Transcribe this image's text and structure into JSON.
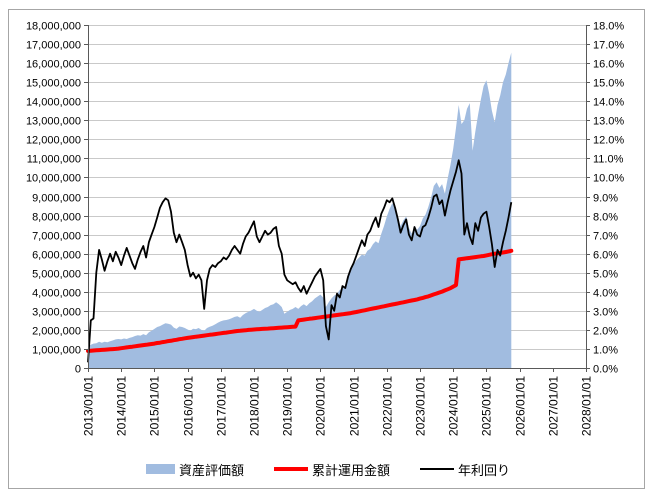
{
  "chart": {
    "background": "#FFFFFF",
    "border_color": "#A6A6A6",
    "grid_color": "#C9C9C9",
    "axis_color": "#595959",
    "text_color": "#000000",
    "left_axis": {
      "min": 0,
      "max": 18000000,
      "step": 1000000,
      "tick_labels": [
        "0",
        "1,000,000",
        "2,000,000",
        "3,000,000",
        "4,000,000",
        "5,000,000",
        "6,000,000",
        "7,000,000",
        "8,000,000",
        "9,000,000",
        "10,000,000",
        "11,000,000",
        "12,000,000",
        "13,000,000",
        "14,000,000",
        "15,000,000",
        "16,000,000",
        "17,000,000",
        "18,000,000"
      ]
    },
    "right_axis": {
      "min_percent": 0,
      "max_percent": 18,
      "step_percent": 1,
      "tick_labels": [
        "0.0%",
        "1.0%",
        "2.0%",
        "3.0%",
        "4.0%",
        "5.0%",
        "6.0%",
        "7.0%",
        "8.0%",
        "9.0%",
        "10.0%",
        "11.0%",
        "12.0%",
        "13.0%",
        "14.0%",
        "15.0%",
        "16.0%",
        "17.0%",
        "18.0%"
      ]
    },
    "x_axis": {
      "tick_labels": [
        "2013/01/01",
        "2014/01/01",
        "2015/01/01",
        "2016/01/01",
        "2017/01/01",
        "2018/01/01",
        "2019/01/01",
        "2020/01/01",
        "2021/01/01",
        "2022/01/01",
        "2023/01/01",
        "2024/01/01",
        "2025/01/01",
        "2026/01/01",
        "2027/01/01",
        "2028/01/01"
      ]
    },
    "legend": {
      "items": [
        {
          "label": "資産評価額",
          "swatch": "area",
          "color": "#A1BCE0"
        },
        {
          "label": "累計運用金額",
          "swatch": "line",
          "color": "#FF0000"
        },
        {
          "label": "年利回り",
          "swatch": "line",
          "color": "#000000"
        }
      ]
    }
  },
  "chart_data": {
    "type": "combo",
    "x_frequency": "monthly",
    "x_start": "2013-01",
    "x_end": "2025-10",
    "x_axis_range": [
      "2013/01/01",
      "2028/01/01"
    ],
    "left_axis_range": [
      0,
      18000000
    ],
    "right_axis_range_percent": [
      0,
      18
    ],
    "grid": "horizontal-only",
    "legend_position": "bottom",
    "series": [
      {
        "name": "資産評価額",
        "type": "area",
        "axis": "left",
        "color": "#A1BCE0",
        "values": [
          1150000,
          1220000,
          1280000,
          1300000,
          1380000,
          1320000,
          1380000,
          1350000,
          1400000,
          1450000,
          1500000,
          1520000,
          1500000,
          1550000,
          1520000,
          1580000,
          1620000,
          1680000,
          1720000,
          1700000,
          1780000,
          1720000,
          1880000,
          1950000,
          2050000,
          2150000,
          2200000,
          2280000,
          2350000,
          2320000,
          2280000,
          2120000,
          2050000,
          2180000,
          2150000,
          2100000,
          2020000,
          1960000,
          2060000,
          2040000,
          2100000,
          2000000,
          1950000,
          2100000,
          2160000,
          2220000,
          2300000,
          2380000,
          2450000,
          2500000,
          2520000,
          2560000,
          2620000,
          2680000,
          2720000,
          2640000,
          2780000,
          2880000,
          2950000,
          3020000,
          3100000,
          3000000,
          2950000,
          3050000,
          3150000,
          3200000,
          3300000,
          3350000,
          3450000,
          3350000,
          3200000,
          2850000,
          2950000,
          3050000,
          3100000,
          3200000,
          3100000,
          3250000,
          3350000,
          3250000,
          3400000,
          3500000,
          3650000,
          3750000,
          3850000,
          3700000,
          3200000,
          3450000,
          3650000,
          3800000,
          3900000,
          4100000,
          4150000,
          4300000,
          4750000,
          5150000,
          5400000,
          5650000,
          5800000,
          5950000,
          5900000,
          6150000,
          6250000,
          6500000,
          6650000,
          6550000,
          7050000,
          7450000,
          7950000,
          8350000,
          8650000,
          8450000,
          7950000,
          7450000,
          7750000,
          7950000,
          7350000,
          7050000,
          7450000,
          7250000,
          7450000,
          7850000,
          8050000,
          8450000,
          8950000,
          9550000,
          9750000,
          9450000,
          9650000,
          9150000,
          9950000,
          10650000,
          11500000,
          12600000,
          13800000,
          12800000,
          13000000,
          13600000,
          13900000,
          11400000,
          12400000,
          13300000,
          14100000,
          14800000,
          15100000,
          14400000,
          13500000,
          12900000,
          13800000,
          14300000,
          15000000,
          15400000,
          16000000,
          16550000
        ]
      },
      {
        "name": "累計運用金額",
        "type": "line",
        "axis": "left",
        "color": "#FF0000",
        "stroke_width": 4,
        "values": [
          900000,
          910000,
          920000,
          930000,
          940000,
          950000,
          960000,
          970000,
          980000,
          990000,
          1000000,
          1020000,
          1040000,
          1060000,
          1080000,
          1100000,
          1120000,
          1140000,
          1160000,
          1180000,
          1200000,
          1220000,
          1240000,
          1260000,
          1280000,
          1310000,
          1330000,
          1360000,
          1380000,
          1410000,
          1430000,
          1460000,
          1480000,
          1510000,
          1530000,
          1560000,
          1580000,
          1600000,
          1620000,
          1640000,
          1660000,
          1680000,
          1700000,
          1720000,
          1740000,
          1760000,
          1780000,
          1800000,
          1820000,
          1840000,
          1860000,
          1880000,
          1900000,
          1920000,
          1940000,
          1950000,
          1970000,
          1980000,
          2000000,
          2010000,
          2020000,
          2030000,
          2040000,
          2050000,
          2060000,
          2070000,
          2080000,
          2090000,
          2100000,
          2110000,
          2120000,
          2130000,
          2140000,
          2150000,
          2160000,
          2170000,
          2500000,
          2520000,
          2540000,
          2560000,
          2580000,
          2600000,
          2620000,
          2640000,
          2660000,
          2680000,
          2700000,
          2720000,
          2740000,
          2760000,
          2780000,
          2800000,
          2820000,
          2840000,
          2860000,
          2880000,
          2910000,
          2940000,
          2970000,
          3000000,
          3030000,
          3060000,
          3090000,
          3120000,
          3150000,
          3180000,
          3210000,
          3240000,
          3270000,
          3300000,
          3330000,
          3360000,
          3390000,
          3420000,
          3450000,
          3480000,
          3510000,
          3540000,
          3570000,
          3600000,
          3640000,
          3680000,
          3720000,
          3760000,
          3810000,
          3860000,
          3910000,
          3960000,
          4010000,
          4070000,
          4130000,
          4190000,
          4270000,
          4350000,
          5700000,
          5720000,
          5740000,
          5760000,
          5780000,
          5800000,
          5820000,
          5840000,
          5860000,
          5880000,
          5910000,
          5940000,
          5970000,
          6000000,
          6020000,
          6040000,
          6060000,
          6090000,
          6120000,
          6150000
        ]
      },
      {
        "name": "年利回り",
        "type": "line",
        "axis": "right",
        "unit": "%",
        "color": "#000000",
        "stroke_width": 1.8,
        "values": [
          0.3,
          2.5,
          2.6,
          5.0,
          6.2,
          5.7,
          5.1,
          5.6,
          6.0,
          5.6,
          6.1,
          5.8,
          5.4,
          5.9,
          6.3,
          5.9,
          5.5,
          5.2,
          5.7,
          6.1,
          6.4,
          5.8,
          6.6,
          7.0,
          7.4,
          7.9,
          8.4,
          8.7,
          8.9,
          8.8,
          8.2,
          7.1,
          6.6,
          7.0,
          6.6,
          6.2,
          5.4,
          4.8,
          5.0,
          4.7,
          4.9,
          4.6,
          3.1,
          4.6,
          5.2,
          5.4,
          5.3,
          5.5,
          5.6,
          5.8,
          5.7,
          5.9,
          6.2,
          6.4,
          6.2,
          6.0,
          6.5,
          6.9,
          7.1,
          7.4,
          7.7,
          6.9,
          6.6,
          6.9,
          7.2,
          7.0,
          7.1,
          7.3,
          7.4,
          6.4,
          6.0,
          4.9,
          4.6,
          4.5,
          4.4,
          4.5,
          4.2,
          4.0,
          4.3,
          3.9,
          4.2,
          4.5,
          4.8,
          5.0,
          5.2,
          4.6,
          2.2,
          1.5,
          3.3,
          3.0,
          3.9,
          3.7,
          4.3,
          4.2,
          4.8,
          5.2,
          5.5,
          5.9,
          6.3,
          6.7,
          6.4,
          7.0,
          7.2,
          7.6,
          7.9,
          7.4,
          8.1,
          8.4,
          8.8,
          8.7,
          8.9,
          8.4,
          7.8,
          7.1,
          7.5,
          7.8,
          7.0,
          6.7,
          7.4,
          7.0,
          6.9,
          7.4,
          7.5,
          7.9,
          8.4,
          9.0,
          9.1,
          8.6,
          8.8,
          8.0,
          8.7,
          9.3,
          9.8,
          10.3,
          10.9,
          10.2,
          7.0,
          7.6,
          6.9,
          6.5,
          7.6,
          7.2,
          7.9,
          8.1,
          8.2,
          7.4,
          6.5,
          5.3,
          6.2,
          5.9,
          6.6,
          7.2,
          7.9,
          8.7
        ]
      }
    ]
  }
}
